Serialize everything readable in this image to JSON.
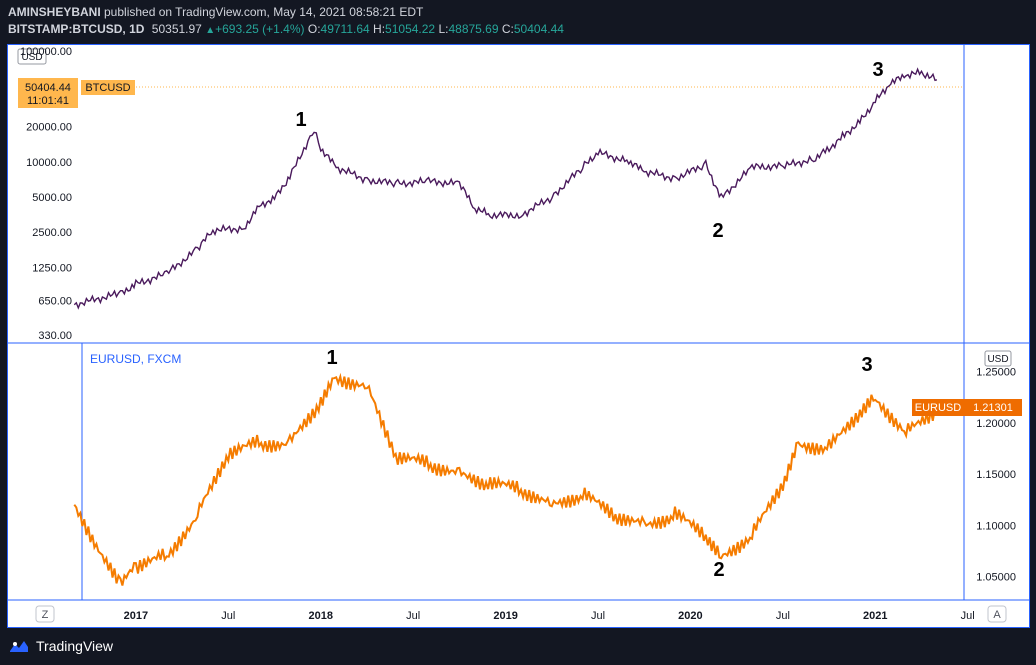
{
  "header": {
    "author": "AMINSHEYBANI",
    "published_text": " published on TradingView.com, May 14, 2021 08:58:21 EDT",
    "symbol": "BITSTAMP:BTCUSD, 1D",
    "last": "50351.97",
    "change_arrow": "▲",
    "change": "+693.25 (+1.4%)",
    "o_label": "O:",
    "o_value": "49711.64",
    "h_label": "H:",
    "h_value": "51054.22",
    "l_label": "L:",
    "l_value": "48875.69",
    "c_label": "C:",
    "c_value": "50404.44"
  },
  "top_pane": {
    "unit_badge": "USD",
    "price_tag": "50404.44",
    "countdown": "11:01:41",
    "symbol_tag": "BTCUSD",
    "axis_labels": [
      "20000.00",
      "10000.00",
      "5000.00",
      "2500.00",
      "1250.00",
      "650.00",
      "330.00"
    ],
    "top_cut_label": "100000.00",
    "wave_labels": [
      "1",
      "2",
      "3"
    ]
  },
  "bottom_pane": {
    "legend": "EURUSD, FXCM",
    "unit_badge": "USD",
    "symbol_tag": "EURUSD",
    "price_tag": "1.21301",
    "axis_labels": [
      "1.25000",
      "1.20000",
      "1.15000",
      "1.10000",
      "1.05000"
    ],
    "wave_labels": [
      "1",
      "2",
      "3"
    ]
  },
  "time_axis": {
    "labels": [
      "2017",
      "Jul",
      "2018",
      "Jul",
      "2019",
      "Jul",
      "2020",
      "Jul",
      "2021",
      "Jul"
    ],
    "z_button": "Z",
    "a_button": "A"
  },
  "footer": {
    "brand": "TradingView"
  },
  "colors": {
    "btc_line": "#4a1a5c",
    "eur_line": "#f57c00",
    "accent": "#2962ff",
    "price_tag": "#ffb74d",
    "eur_tag": "#ef6c00"
  },
  "chart_data": [
    {
      "type": "line",
      "title": "BITSTAMP:BTCUSD, 1D",
      "scale": "log",
      "ylim": [
        330,
        100000
      ],
      "x": [
        "2016-09",
        "2016-12",
        "2017-01",
        "2017-03",
        "2017-05",
        "2017-06",
        "2017-08",
        "2017-09",
        "2017-10",
        "2017-11",
        "2017-12-17",
        "2018-01",
        "2018-02",
        "2018-04",
        "2018-06",
        "2018-08",
        "2018-10",
        "2018-11",
        "2018-12",
        "2019-02",
        "2019-04",
        "2019-06",
        "2019-07",
        "2019-09",
        "2019-10",
        "2019-12",
        "2020-02",
        "2020-03",
        "2020-05",
        "2020-07",
        "2020-09",
        "2020-10",
        "2020-11",
        "2020-12",
        "2021-01",
        "2021-02",
        "2021-03",
        "2021-04",
        "2021-05"
      ],
      "series": [
        {
          "values": [
            600,
            750,
            900,
            1100,
            1800,
            2600,
            2700,
            4200,
            4900,
            7500,
            19000,
            13000,
            9000,
            7000,
            6500,
            6800,
            6500,
            4000,
            3500,
            3500,
            5000,
            9000,
            12000,
            10000,
            8300,
            7200,
            9500,
            4900,
            9000,
            9200,
            10500,
            13000,
            17000,
            22000,
            33000,
            47000,
            55000,
            58000,
            50400
          ]
        }
      ]
    },
    {
      "type": "line",
      "title": "EURUSD, FXCM",
      "ylim": [
        1.03,
        1.27
      ],
      "x": [
        "2016-09",
        "2016-12",
        "2017-01",
        "2017-03",
        "2017-05",
        "2017-07",
        "2017-09",
        "2017-11",
        "2018-01",
        "2018-02",
        "2018-04",
        "2018-06",
        "2018-08",
        "2018-10",
        "2018-12",
        "2019-02",
        "2019-04",
        "2019-06",
        "2019-08",
        "2019-10",
        "2019-12",
        "2020-02",
        "2020-03",
        "2020-05",
        "2020-07",
        "2020-08",
        "2020-10",
        "2020-12",
        "2021-01",
        "2021-03",
        "2021-05"
      ],
      "series": [
        {
          "values": [
            1.12,
            1.04,
            1.06,
            1.07,
            1.11,
            1.17,
            1.18,
            1.18,
            1.22,
            1.245,
            1.235,
            1.165,
            1.16,
            1.15,
            1.14,
            1.135,
            1.12,
            1.13,
            1.11,
            1.1,
            1.11,
            1.09,
            1.07,
            1.09,
            1.14,
            1.18,
            1.175,
            1.21,
            1.225,
            1.19,
            1.213
          ]
        }
      ]
    }
  ]
}
